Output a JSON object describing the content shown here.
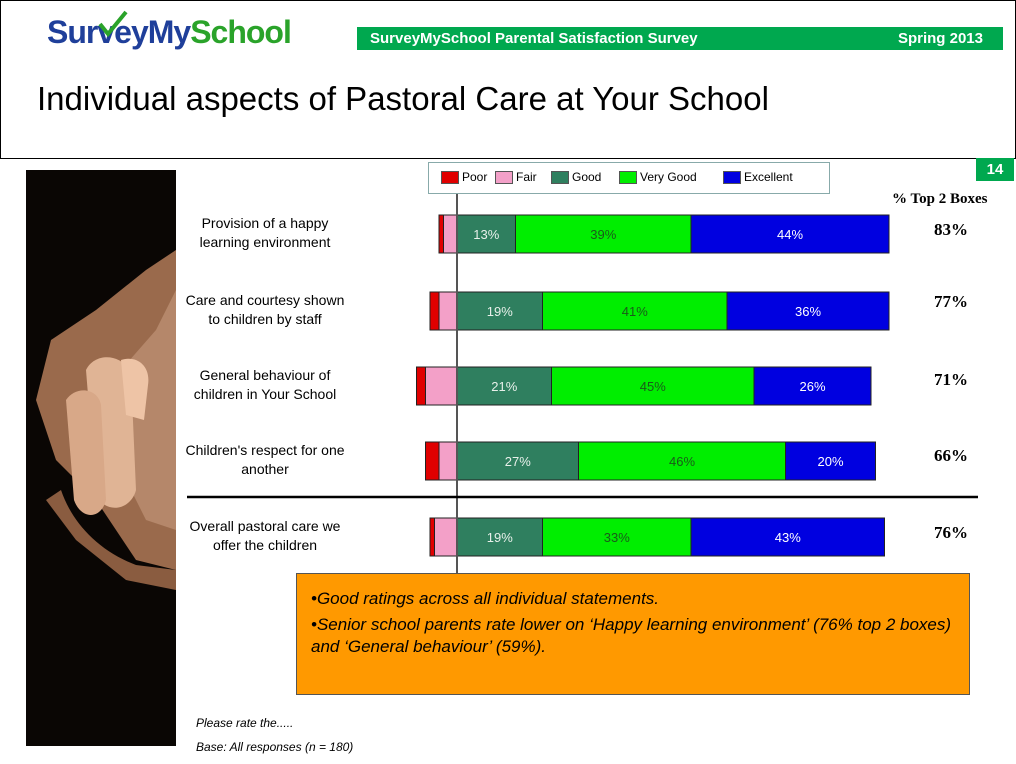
{
  "header": {
    "logo_blue": "SurveyMy",
    "logo_green": "School",
    "banner_left": "SurveyMySchool  Parental Satisfaction Survey",
    "banner_right": "Spring 2013",
    "page_title": "Individual aspects of Pastoral Care at Your School",
    "page_number": "14"
  },
  "colors": {
    "brand_green": "#00a84f",
    "poor": "#e00000",
    "fair": "#f3a0c8",
    "good": "#2f7f5f",
    "very_good": "#00ee00",
    "excellent": "#0000e0",
    "commentary_bg": "#ff9900"
  },
  "chart_data": {
    "type": "bar",
    "orientation": "horizontal",
    "stacked": true,
    "legend": [
      "Poor",
      "Fair",
      "Good",
      "Very Good",
      "Excellent"
    ],
    "legend_placement": "top",
    "categories": [
      "Provision of a happy learning environment",
      "Care and courtesy shown to children by staff",
      "General behaviour of children in Your School",
      "Children's respect for one another",
      "Overall pastoral care we offer the children"
    ],
    "category_lines": [
      [
        "Provision of a happy",
        "learning environment"
      ],
      [
        "Care and courtesy shown",
        "to children by staff"
      ],
      [
        "General behaviour of",
        "children in Your School"
      ],
      [
        "Children's respect for one",
        "another"
      ],
      [
        "Overall pastoral care we",
        "offer the children"
      ]
    ],
    "series": [
      {
        "name": "Poor",
        "values": [
          1,
          2,
          2,
          3,
          1
        ],
        "labels": [
          "",
          "",
          "",
          "",
          ""
        ]
      },
      {
        "name": "Fair",
        "values": [
          3,
          4,
          7,
          4,
          5
        ],
        "labels": [
          "",
          "",
          "",
          "",
          ""
        ]
      },
      {
        "name": "Good",
        "values": [
          13,
          19,
          21,
          27,
          19
        ],
        "labels": [
          "13%",
          "19%",
          "21%",
          "27%",
          "19%"
        ]
      },
      {
        "name": "Very Good",
        "values": [
          39,
          41,
          45,
          46,
          33
        ],
        "labels": [
          "39%",
          "41%",
          "45%",
          "46%",
          "33%"
        ]
      },
      {
        "name": "Excellent",
        "values": [
          44,
          36,
          26,
          20,
          43
        ],
        "labels": [
          "44%",
          "36%",
          "26%",
          "20%",
          "43%"
        ]
      }
    ],
    "top2_header": "% Top 2 Boxes",
    "top2": [
      "83%",
      "77%",
      "71%",
      "66%",
      "76%"
    ],
    "separator_after_index": 3
  },
  "commentary": [
    "•Good ratings across all individual statements.",
    "•Senior school parents rate lower on ‘Happy learning environment’ (76% top 2 boxes) and ‘General behaviour’ (59%)."
  ],
  "footnotes": {
    "question": "Please rate the.....",
    "base": "Base: All responses (n = 180)"
  }
}
